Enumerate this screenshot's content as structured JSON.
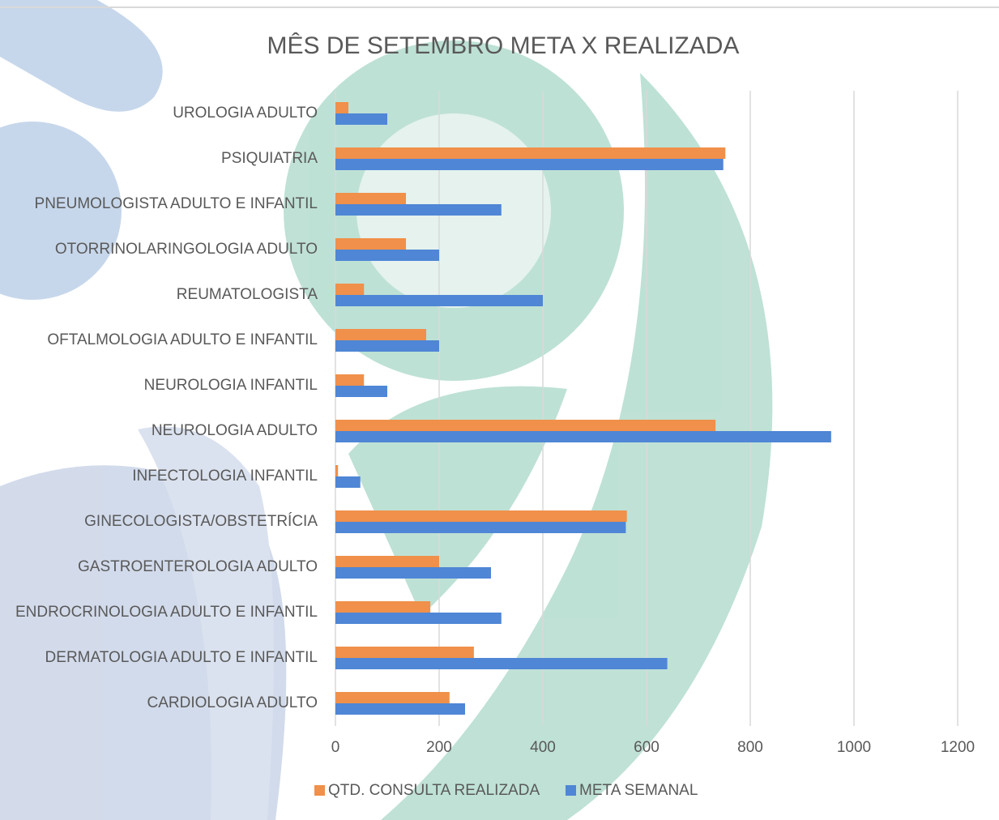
{
  "chart_data": {
    "type": "bar",
    "orientation": "horizontal",
    "title": "MÊS DE SETEMBRO META X REALIZADA",
    "categories": [
      "UROLOGIA ADULTO",
      "PSIQUIATRIA",
      "PNEUMOLOGISTA ADULTO E INFANTIL",
      "OTORRINOLARINGOLOGIA ADULTO",
      "REUMATOLOGISTA",
      "OFTALMOLOGIA ADULTO E INFANTIL",
      "NEUROLOGIA INFANTIL",
      "NEUROLOGIA ADULTO",
      "INFECTOLOGIA INFANTIL",
      "GINECOLOGISTA/OBSTETRÍCIA",
      "GASTROENTEROLOGIA ADULTO",
      "ENDROCRINOLOGIA ADULTO E INFANTIL",
      "DERMATOLOGIA ADULTO E INFANTIL",
      "CARDIOLOGIA ADULTO"
    ],
    "series": [
      {
        "name": "QTD. CONSULTA REALIZADA",
        "color": "#f0904a",
        "values": [
          25,
          752,
          136,
          136,
          55,
          175,
          55,
          733,
          5,
          562,
          200,
          183,
          267,
          220
        ]
      },
      {
        "name": "META SEMANAL",
        "color": "#4f86d6",
        "values": [
          100,
          748,
          320,
          200,
          400,
          200,
          100,
          956,
          48,
          560,
          300,
          320,
          640,
          250
        ]
      }
    ],
    "xlim": [
      0,
      1200
    ],
    "xticks": [
      0,
      200,
      400,
      600,
      800,
      1000,
      1200
    ],
    "grid": true,
    "legend": "bottom"
  }
}
